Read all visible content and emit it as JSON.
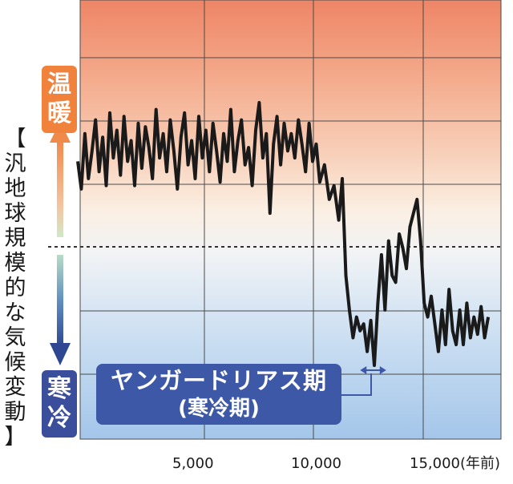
{
  "chart_data": {
    "type": "line",
    "title": "",
    "xlabel": "",
    "ylabel": "【汎地球規模的な気候変動】",
    "x_unit": "(年前)",
    "xlim": [
      0,
      18000
    ],
    "x_ticks": [
      5000,
      10000,
      15000
    ],
    "x_tick_labels": [
      "5,000",
      "10,000",
      "15,000(年前)"
    ],
    "ylim": [
      0,
      100
    ],
    "baseline": 50,
    "warm_label": "温暖",
    "cold_label": "寒冷",
    "axis_label_chars": [
      "【",
      "汎",
      "地",
      "球",
      "規",
      "模",
      "的",
      "な",
      "気",
      "候",
      "変",
      "動",
      "】"
    ],
    "annotation": {
      "line1": "ヤンガードリアス期",
      "line2": "(寒冷期)",
      "x_range": [
        11900,
        13000
      ]
    },
    "series": [
      {
        "x": [
          0,
          150,
          300,
          450,
          600,
          750,
          900,
          1050,
          1200,
          1350,
          1500,
          1650,
          1800,
          1950,
          2100,
          2250,
          2400,
          2550,
          2700,
          2850,
          3000,
          3150,
          3300,
          3450,
          3600,
          3750,
          3900,
          4050,
          4200,
          4350,
          4500,
          4650,
          4800,
          4950,
          5100,
          5250,
          5400,
          5550,
          5700,
          5850,
          6000,
          6150,
          6300,
          6450,
          6600,
          6750,
          6900,
          7050,
          7200,
          7350,
          7500,
          7650,
          7800,
          7950,
          8100,
          8250,
          8400,
          8550,
          8700,
          8850,
          9000,
          9150,
          9300,
          9450,
          9600,
          9750,
          9900,
          10050,
          10200,
          10400,
          10600,
          10800,
          11000,
          11150,
          11300,
          11450,
          11600,
          11750,
          11900,
          12050,
          12200,
          12350,
          12500,
          12650,
          12800,
          12950,
          13100,
          13250,
          13400,
          13550,
          13700,
          13850,
          14000,
          14150,
          14300,
          14450,
          14600,
          14750,
          14900,
          15050,
          15200,
          15350,
          15500,
          15650,
          15800,
          15950,
          16100,
          16250,
          16400,
          16550,
          16700,
          16850,
          17000,
          17150,
          17300
        ],
        "y": [
          71,
          63,
          79,
          66,
          74,
          83,
          68,
          78,
          64,
          85,
          72,
          80,
          67,
          84,
          71,
          77,
          64,
          82,
          69,
          81,
          75,
          66,
          86,
          72,
          79,
          68,
          83,
          74,
          63,
          78,
          85,
          70,
          77,
          66,
          84,
          72,
          80,
          68,
          82,
          74,
          65,
          79,
          71,
          86,
          68,
          77,
          83,
          70,
          75,
          64,
          80,
          88,
          72,
          79,
          56,
          76,
          84,
          70,
          82,
          74,
          79,
          72,
          83,
          76,
          68,
          82,
          71,
          76,
          65,
          70,
          60,
          64,
          54,
          66,
          38,
          28,
          20,
          26,
          22,
          24,
          16,
          25,
          12,
          30,
          44,
          28,
          48,
          38,
          36,
          50,
          46,
          40,
          52,
          56,
          60,
          48,
          30,
          26,
          32,
          24,
          16,
          28,
          18,
          34,
          22,
          18,
          28,
          18,
          30,
          20,
          26,
          21,
          29,
          20,
          26
        ]
      }
    ]
  }
}
